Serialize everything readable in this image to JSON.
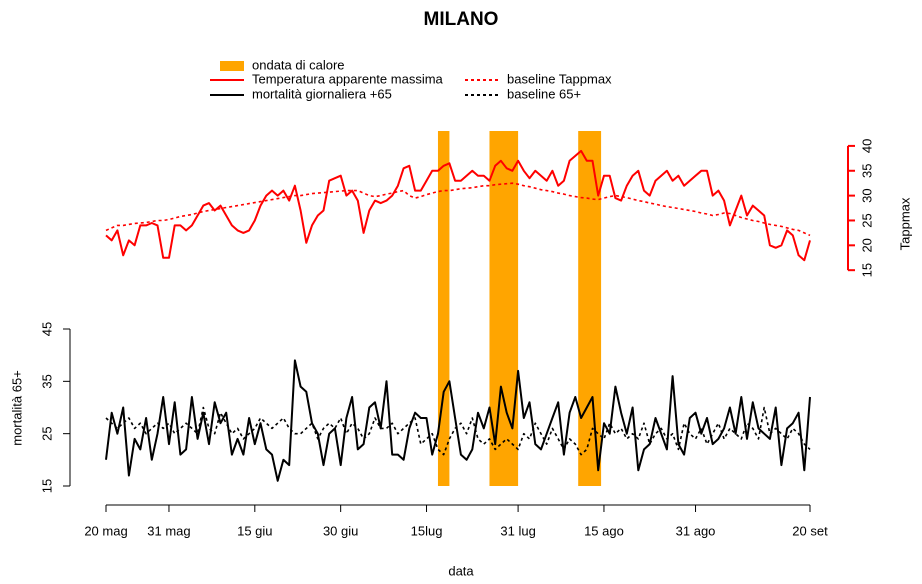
{
  "chart_data": {
    "type": "line",
    "title": "MILANO",
    "xlabel": "data",
    "ylabel": "mortalità 65+",
    "y2label": "Tappmax",
    "xlim": [
      0,
      123
    ],
    "xticks": [
      {
        "value": 0,
        "label": "20 mag"
      },
      {
        "value": 11,
        "label": "31 mag"
      },
      {
        "value": 26,
        "label": "15 giu"
      },
      {
        "value": 41,
        "label": "30 giu"
      },
      {
        "value": 56,
        "label": "15lug"
      },
      {
        "value": 72,
        "label": "31 lug"
      },
      {
        "value": 87,
        "label": "15 ago"
      },
      {
        "value": 103,
        "label": "31 ago"
      },
      {
        "value": 123,
        "label": "20 set"
      }
    ],
    "ylim": [
      15,
      45
    ],
    "yticks": [
      15,
      25,
      35,
      45
    ],
    "y2lim": [
      9,
      43
    ],
    "y2ticks": [
      15,
      20,
      25,
      30,
      35,
      40
    ],
    "y2color": "#ff0000",
    "highlight": {
      "name": "ondata di calore",
      "color": "#ffa500",
      "spans": [
        [
          58,
          60
        ],
        [
          67,
          72
        ],
        [
          82.5,
          86.5
        ]
      ]
    },
    "x": [
      0,
      1,
      2,
      3,
      4,
      5,
      6,
      7,
      8,
      9,
      10,
      11,
      12,
      13,
      14,
      15,
      16,
      17,
      18,
      19,
      20,
      21,
      22,
      23,
      24,
      25,
      26,
      27,
      28,
      29,
      30,
      31,
      32,
      33,
      34,
      35,
      36,
      37,
      38,
      39,
      40,
      41,
      42,
      43,
      44,
      45,
      46,
      47,
      48,
      49,
      50,
      51,
      52,
      53,
      54,
      55,
      56,
      57,
      58,
      59,
      60,
      61,
      62,
      63,
      64,
      65,
      66,
      67,
      68,
      69,
      70,
      71,
      72,
      73,
      74,
      75,
      76,
      77,
      78,
      79,
      80,
      81,
      82,
      83,
      84,
      85,
      86,
      87,
      88,
      89,
      90,
      91,
      92,
      93,
      94,
      95,
      96,
      97,
      98,
      99,
      100,
      101,
      102,
      103,
      104,
      105,
      106,
      107,
      108,
      109,
      110,
      111,
      112,
      113,
      114,
      115,
      116,
      117,
      118,
      119,
      120,
      121,
      122,
      123
    ],
    "series": [
      {
        "name": "Temperatura apparente massima",
        "color": "#ff0000",
        "dash": "solid",
        "axis": "y2",
        "values": [
          22,
          21,
          23,
          18,
          21,
          20,
          24,
          24,
          24.5,
          24,
          17.5,
          17.5,
          24,
          24,
          23,
          24,
          26,
          28,
          28.5,
          27,
          28,
          26,
          24,
          23,
          22.5,
          23,
          25,
          28,
          30,
          31,
          30,
          31,
          29,
          32,
          27,
          20.5,
          24,
          26,
          27,
          33,
          33.5,
          34,
          30,
          31,
          29,
          22.5,
          27,
          29,
          28.5,
          29,
          30,
          32,
          35.5,
          36,
          31,
          31,
          33,
          35,
          35,
          36,
          36.5,
          33,
          33,
          34,
          35,
          34,
          34,
          33,
          36,
          37,
          35.5,
          35,
          37,
          35,
          33.5,
          35,
          34,
          33,
          35,
          32,
          33,
          37,
          38,
          39,
          37,
          37,
          30,
          34,
          34,
          29.5,
          29,
          32,
          34,
          35,
          31,
          30,
          33,
          34,
          35,
          33,
          34,
          32,
          33,
          34,
          35,
          35,
          30,
          31,
          29,
          24,
          27,
          30,
          26,
          28,
          27,
          26,
          20,
          19.5,
          20,
          23,
          22,
          18,
          17,
          21
        ]
      },
      {
        "name": "mortalità giornaliera +65",
        "color": "#000000",
        "dash": "solid",
        "axis": "y",
        "values": [
          20,
          29,
          25,
          30,
          17,
          24,
          22,
          28,
          20,
          25,
          32,
          23,
          31,
          21,
          22,
          32,
          24,
          29,
          23,
          31,
          27,
          29,
          21,
          24,
          21,
          28,
          23,
          27,
          22,
          21,
          16,
          20,
          19,
          39,
          34,
          33,
          27,
          25,
          19,
          25,
          26,
          19,
          28,
          32,
          22,
          23,
          30,
          31,
          26,
          35,
          21,
          21,
          20,
          26,
          29,
          28,
          28,
          21,
          25,
          33,
          35,
          28,
          21,
          20,
          22,
          29,
          26,
          30,
          23,
          34,
          29,
          26,
          37,
          28,
          31,
          23,
          22,
          25,
          28,
          31,
          21,
          29,
          32,
          28,
          30,
          32,
          18,
          27,
          25,
          34,
          29,
          25,
          30,
          18,
          22,
          23,
          28,
          25,
          22,
          36,
          23,
          21,
          28,
          29,
          25,
          28,
          23,
          24,
          26,
          30,
          25,
          32,
          24,
          31,
          26,
          25,
          24,
          30,
          19,
          26,
          27,
          29,
          18,
          32
        ]
      },
      {
        "name": "baseline Tappmax",
        "color": "#ff0000",
        "dash": "dotted",
        "axis": "y2",
        "values": [
          23,
          23.5,
          24,
          24,
          24.2,
          24.4,
          24.5,
          24.6,
          24.8,
          25,
          25,
          25.2,
          25.5,
          25.8,
          26,
          26.2,
          26.5,
          26.8,
          27,
          27.2,
          27.4,
          27.6,
          27.8,
          28,
          28.2,
          28.4,
          28.6,
          28.8,
          29,
          29.2,
          29.4,
          29.6,
          29.8,
          30,
          30,
          30.2,
          30.4,
          30.5,
          30.6,
          30.7,
          30.8,
          30.9,
          31,
          31,
          31,
          30.5,
          30,
          29.8,
          30,
          30.3,
          30.5,
          30.8,
          31,
          30,
          29.5,
          29.8,
          30.2,
          30.5,
          30.8,
          31,
          31,
          31.2,
          31.4,
          31.5,
          31.6,
          31.8,
          32,
          32,
          32.2,
          32.3,
          32.4,
          32.5,
          32.3,
          32,
          31.8,
          31.5,
          31.2,
          31,
          30.8,
          30.5,
          30.3,
          30,
          29.8,
          29.6,
          29.5,
          29.3,
          29.2,
          29.5,
          29.8,
          30,
          29.8,
          29.6,
          29.3,
          29,
          28.8,
          28.5,
          28.3,
          28,
          27.8,
          27.6,
          27.4,
          27.2,
          27,
          26.8,
          26.5,
          26.3,
          26,
          26.2,
          26.5,
          26.4,
          26,
          25.6,
          25.3,
          25,
          24.8,
          24.5,
          24.2,
          24,
          23.8,
          23.5,
          23.2,
          23,
          22.5,
          22
        ]
      },
      {
        "name": "baseline 65+",
        "color": "#000000",
        "dash": "dotted",
        "axis": "y",
        "values": [
          28,
          27,
          26,
          27,
          28,
          26,
          27,
          25,
          26,
          27,
          26,
          27,
          25,
          26,
          27,
          26,
          25,
          30,
          26,
          25,
          29,
          27,
          25,
          26,
          24,
          25,
          26,
          28,
          27,
          26,
          27,
          28,
          26,
          25,
          25,
          26,
          27,
          24,
          26,
          27,
          26,
          28,
          25,
          27,
          26,
          24,
          25,
          28,
          26,
          26,
          27,
          25,
          26,
          27,
          28,
          23,
          24,
          25,
          22,
          21,
          24,
          26,
          27,
          25,
          28,
          24,
          23,
          24,
          22,
          23,
          24,
          23,
          22,
          25,
          24,
          27,
          25,
          23,
          26,
          24,
          22,
          24,
          23,
          21,
          22,
          26,
          25,
          24,
          27,
          25,
          26,
          24,
          25,
          24,
          27,
          23,
          25,
          26,
          24,
          25,
          22,
          27,
          25,
          24,
          26,
          23,
          25,
          27,
          24,
          26,
          25,
          24,
          27,
          26,
          24,
          30,
          25,
          26,
          25,
          24,
          26,
          25,
          23,
          22
        ]
      }
    ]
  }
}
